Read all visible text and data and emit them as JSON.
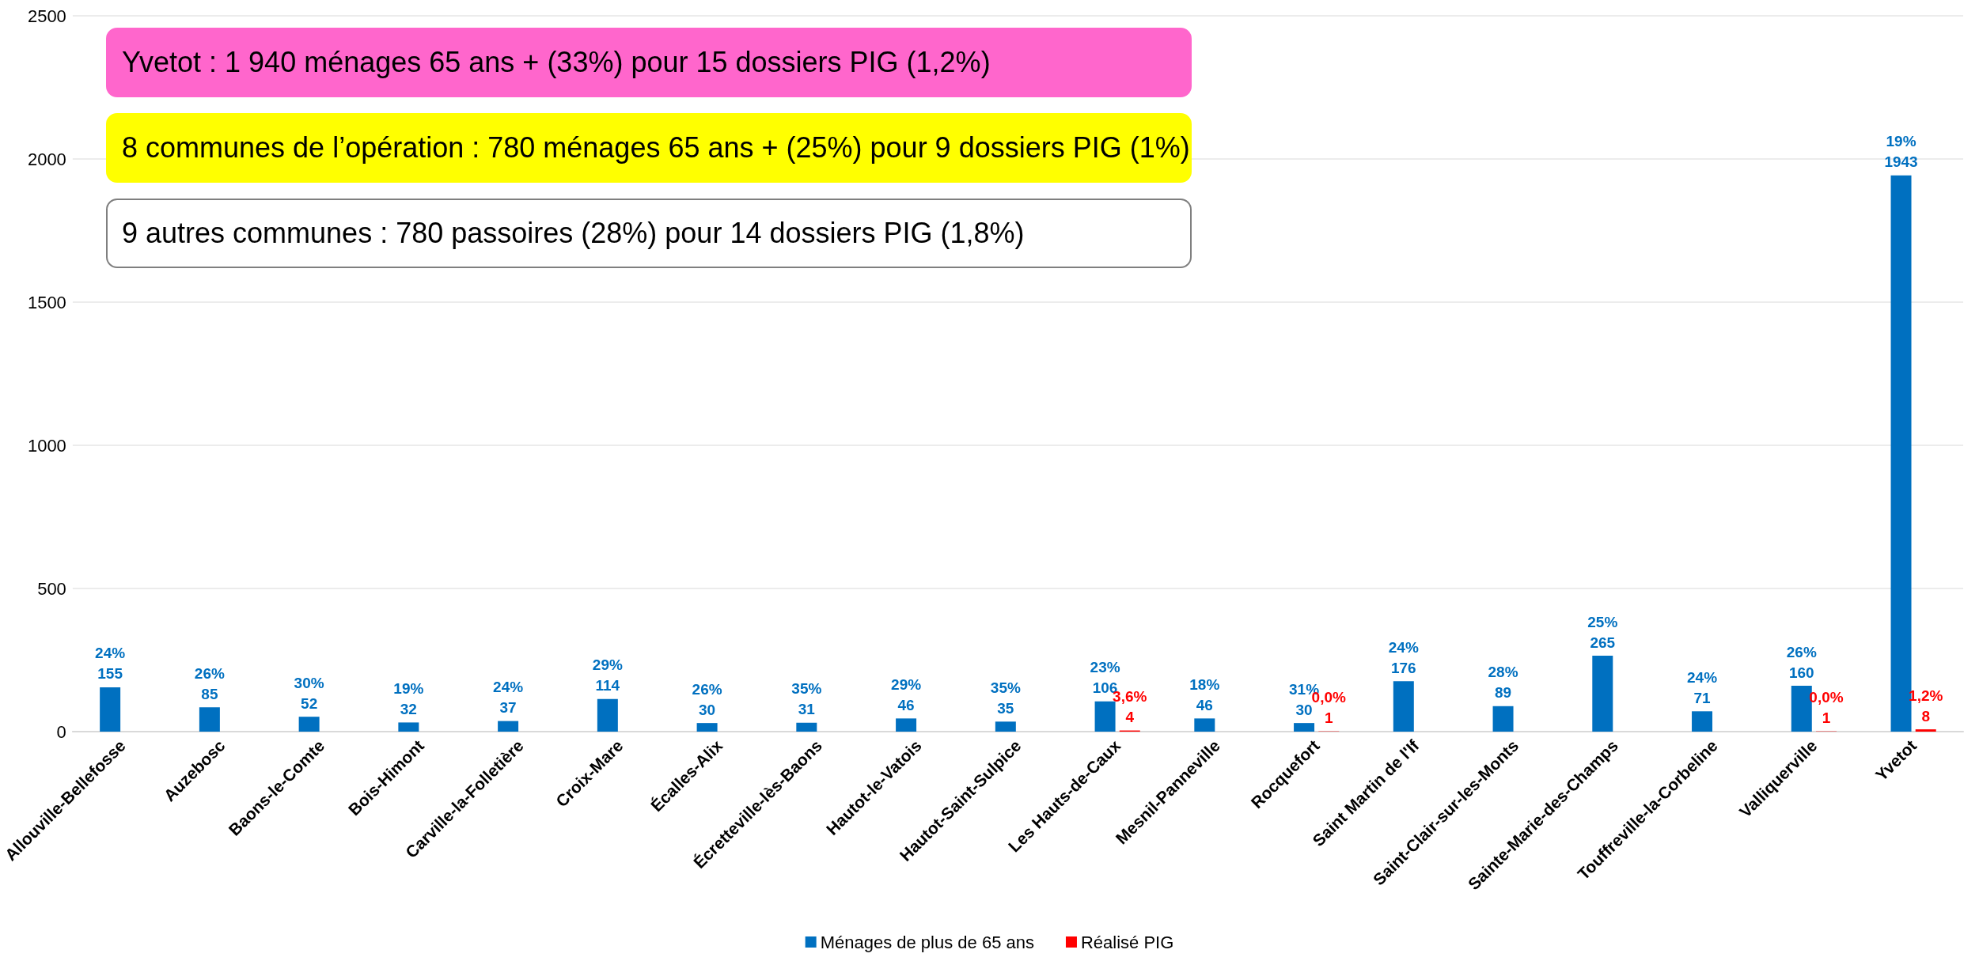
{
  "chart_data": {
    "type": "bar",
    "categories": [
      "Allouville-Bellefosse",
      "Auzebosc",
      "Baons-le-Comte",
      "Bois-Himont",
      "Carville-la-Folletière",
      "Croix-Mare",
      "Écalles-Alix",
      "Écretteville-lès-Baons",
      "Hautot-le-Vatois",
      "Hautot-Saint-Sulpice",
      "Les Hauts-de-Caux",
      "Mesnil-Panneville",
      "Rocquefort",
      "Saint Martin de l'If",
      "Saint-Clair-sur-les-Monts",
      "Sainte-Marie-des-Champs",
      "Touffreville-la-Corbeline",
      "Valliquerville",
      "Yvetot"
    ],
    "series": [
      {
        "name": "Ménages de plus de 65 ans",
        "color": "#0070c0",
        "values": [
          155,
          85,
          52,
          32,
          37,
          114,
          30,
          31,
          46,
          35,
          106,
          46,
          30,
          176,
          89,
          265,
          71,
          160,
          1943
        ],
        "value_labels": [
          "24%\n155",
          "26%\n85",
          "30%\n52",
          "19%\n32",
          "24%\n37",
          "29%\n114",
          "26%\n30",
          "35%\n31",
          "29%\n46",
          "35%\n35",
          "23%\n106",
          "18%\n46",
          "31%\n30",
          "24%\n176",
          "28%\n89",
          "25%\n265",
          "24%\n71",
          "26%\n160",
          "19%\n1943"
        ]
      },
      {
        "name": "Réalisé PIG",
        "color": "#ff0000",
        "values": [
          null,
          null,
          null,
          null,
          null,
          null,
          null,
          null,
          null,
          null,
          4,
          null,
          1,
          null,
          null,
          null,
          null,
          1,
          8
        ],
        "value_labels": [
          null,
          null,
          null,
          null,
          null,
          null,
          null,
          null,
          null,
          null,
          "3,6%\n4",
          null,
          "0,0%\n1",
          null,
          null,
          null,
          null,
          "0,0%\n1",
          "1,2%\n8"
        ]
      }
    ],
    "ylim": [
      0,
      2500
    ],
    "yticks": [
      0,
      500,
      1000,
      1500,
      2000,
      2500
    ],
    "grid": "y",
    "legend": "bottom",
    "annotations": [
      "Yvetot : 1 940 ménages 65 ans + (33%) pour 15 dossiers PIG (1,2%)",
      "8 communes de l’opération : 780 ménages 65 ans + (25%) pour 9 dossiers PIG (1%)",
      "9 autres communes : 780 passoires (28%) pour 14 dossiers PIG (1,8%)"
    ]
  }
}
